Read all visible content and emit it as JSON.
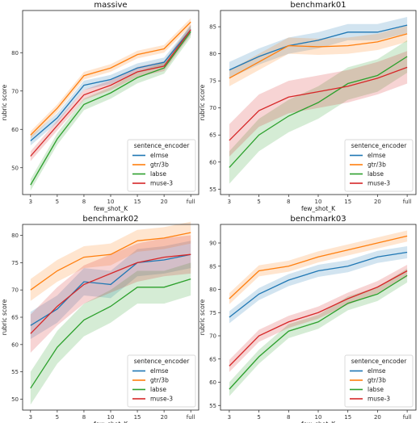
{
  "figure": {
    "legend_title": "sentence_encoder",
    "x_label": "few_shot_K",
    "y_label": "rubric score"
  },
  "chart_data": [
    {
      "type": "line",
      "title": "massive",
      "xlabel": "few_shot_K",
      "ylabel": "rubric score",
      "categories": [
        "3",
        "5",
        "8",
        "10",
        "15",
        "20",
        "full"
      ],
      "ylim": [
        43,
        91
      ],
      "yticks": [
        50,
        60,
        70,
        80
      ],
      "grid": false,
      "legend": {
        "title": "sentence_encoder",
        "placement": "bottom-right"
      },
      "series": [
        {
          "name": "elmse",
          "color": "#1f77b4",
          "values": [
            57,
            63,
            71.5,
            73,
            76,
            77.5,
            86
          ],
          "band": 1.2
        },
        {
          "name": "gtr/3b",
          "color": "#ff7f0e",
          "values": [
            58.5,
            65.5,
            74,
            76,
            79.5,
            81,
            88
          ],
          "band": 1.0
        },
        {
          "name": "labse",
          "color": "#2ca02c",
          "values": [
            45.5,
            57.5,
            66.5,
            69.5,
            73.5,
            76,
            85.5
          ],
          "band": 1.5
        },
        {
          "name": "muse-3",
          "color": "#d62728",
          "values": [
            53,
            61,
            69,
            71.5,
            75,
            76.5,
            86
          ],
          "band": 1.3
        }
      ]
    },
    {
      "type": "line",
      "title": "benchmark01",
      "xlabel": "few_shot_K",
      "ylabel": "rubric score",
      "categories": [
        "3",
        "5",
        "8",
        "10",
        "15",
        "20",
        "full"
      ],
      "ylim": [
        54,
        88
      ],
      "yticks": [
        55,
        60,
        65,
        70,
        75,
        80,
        85
      ],
      "grid": false,
      "legend": {
        "title": "sentence_encoder",
        "placement": "bottom-right"
      },
      "series": [
        {
          "name": "elmse",
          "color": "#1f77b4",
          "values": [
            77,
            79.5,
            81.5,
            82.5,
            84,
            84,
            85.3
          ],
          "band": 1.5
        },
        {
          "name": "gtr/3b",
          "color": "#ff7f0e",
          "values": [
            75.5,
            78.5,
            81.5,
            81.3,
            81.5,
            82.2,
            83.7
          ],
          "band": 1.5
        },
        {
          "name": "labse",
          "color": "#2ca02c",
          "values": [
            59,
            65,
            68.5,
            71,
            74.5,
            76,
            79.5
          ],
          "band": 3.0
        },
        {
          "name": "muse-3",
          "color": "#d62728",
          "values": [
            64,
            69.5,
            72,
            73,
            74,
            75.5,
            77.5
          ],
          "band": 3.0
        }
      ]
    },
    {
      "type": "line",
      "title": "benchmark02",
      "xlabel": "few_shot_K",
      "ylabel": "rubric score",
      "categories": [
        "3",
        "5",
        "8",
        "10",
        "15",
        "20",
        "full"
      ],
      "ylim": [
        48,
        82
      ],
      "yticks": [
        50,
        55,
        60,
        65,
        70,
        75,
        80
      ],
      "grid": false,
      "legend": {
        "title": "sentence_encoder",
        "placement": "bottom-right"
      },
      "series": [
        {
          "name": "elmse",
          "color": "#1f77b4",
          "values": [
            63.5,
            66.5,
            71.5,
            71,
            75,
            75.5,
            76.5
          ],
          "band": 2.5
        },
        {
          "name": "gtr/3b",
          "color": "#ff7f0e",
          "values": [
            70,
            73.5,
            76,
            76.5,
            79,
            79.5,
            80.5
          ],
          "band": 2.0
        },
        {
          "name": "labse",
          "color": "#2ca02c",
          "values": [
            52,
            59.5,
            64.5,
            67,
            70.5,
            70.5,
            72
          ],
          "band": 3.0
        },
        {
          "name": "muse-3",
          "color": "#d62728",
          "values": [
            62,
            67,
            71,
            73,
            75,
            76,
            76.5
          ],
          "band": 3.5
        }
      ]
    },
    {
      "type": "line",
      "title": "benchmark03",
      "xlabel": "few_shot_K",
      "ylabel": "rubric score",
      "categories": [
        "3",
        "5",
        "8",
        "10",
        "15",
        "20",
        "full"
      ],
      "ylim": [
        54,
        94
      ],
      "yticks": [
        55,
        60,
        65,
        70,
        75,
        80,
        85,
        90
      ],
      "grid": false,
      "legend": {
        "title": "sentence_encoder",
        "placement": "bottom-right"
      },
      "series": [
        {
          "name": "elmse",
          "color": "#1f77b4",
          "values": [
            74,
            79,
            82,
            84,
            85,
            87,
            88
          ],
          "band": 1.3
        },
        {
          "name": "gtr/3b",
          "color": "#ff7f0e",
          "values": [
            78,
            84,
            85,
            87,
            88.5,
            90,
            91.5
          ],
          "band": 1.2
        },
        {
          "name": "labse",
          "color": "#2ca02c",
          "values": [
            58.5,
            65.5,
            71,
            73,
            77,
            79,
            83
          ],
          "band": 1.5
        },
        {
          "name": "muse-3",
          "color": "#d62728",
          "values": [
            63.5,
            70,
            73,
            75,
            78,
            80.5,
            84
          ],
          "band": 1.3
        }
      ]
    }
  ]
}
